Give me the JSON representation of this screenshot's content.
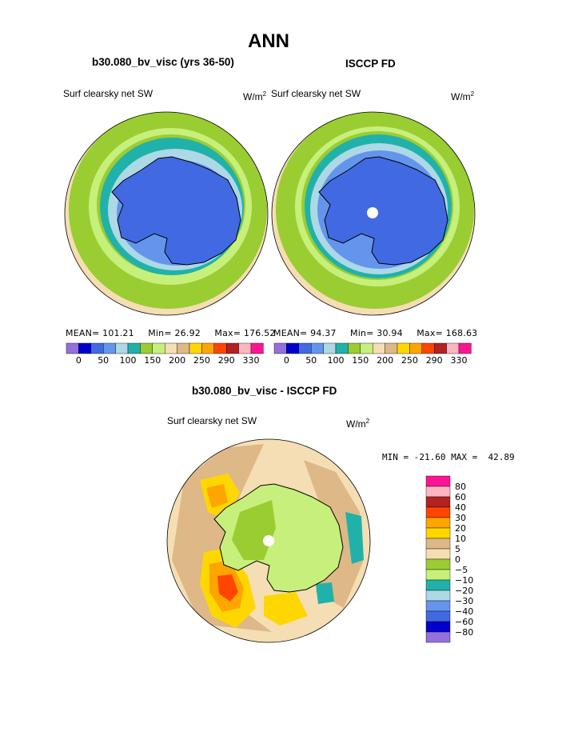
{
  "figure": {
    "title": "ANN",
    "panel1": {
      "case": "b30.080_bv_visc (yrs 36-50)",
      "field": "Surf clearsky net SW",
      "units_base": "W/m",
      "units_exp": "2",
      "mean_label": "MEAN=",
      "mean": "101.21",
      "min_label": "Min=",
      "min": "26.92",
      "max_label": "Max=",
      "max": "176.52"
    },
    "panel2": {
      "case": "ISCCP FD",
      "field": "Surf clearsky net SW",
      "units_base": "W/m",
      "units_exp": "2",
      "mean_label": "MEAN=",
      "mean": "94.37",
      "min_label": "Min=",
      "min": "30.94",
      "max_label": "Max=",
      "max": "168.63"
    },
    "panel3": {
      "title": "b30.080_bv_visc - ISCCP FD",
      "field": "Surf clearsky net SW",
      "units_base": "W/m",
      "units_exp": "2",
      "minmax_text": "MIN = -21.60 MAX =  42.89"
    }
  },
  "colorbar_h": {
    "colors": [
      "#9370db",
      "#0000cd",
      "#4169e1",
      "#6495ed",
      "#add8e6",
      "#20b2aa",
      "#9acd32",
      "#c7ef7b",
      "#f5deb3",
      "#deb887",
      "#ffd700",
      "#ffa500",
      "#ff4500",
      "#b22222",
      "#ffb6c1",
      "#ff1493"
    ],
    "labels": [
      "0",
      "50",
      "100",
      "150",
      "200",
      "250",
      "290",
      "330"
    ]
  },
  "colorbar_v": {
    "colors": [
      "#ff1493",
      "#ffb6c1",
      "#b22222",
      "#ff4500",
      "#ffa500",
      "#ffd700",
      "#deb887",
      "#f5deb3",
      "#9acd32",
      "#c7ef7b",
      "#20b2aa",
      "#add8e6",
      "#6495ed",
      "#4169e1",
      "#0000cd",
      "#9370db"
    ],
    "labels": [
      "80",
      "60",
      "40",
      "30",
      "20",
      "10",
      "5",
      "0",
      "−5",
      "−10",
      "−20",
      "−30",
      "−40",
      "−60",
      "−80"
    ]
  }
}
